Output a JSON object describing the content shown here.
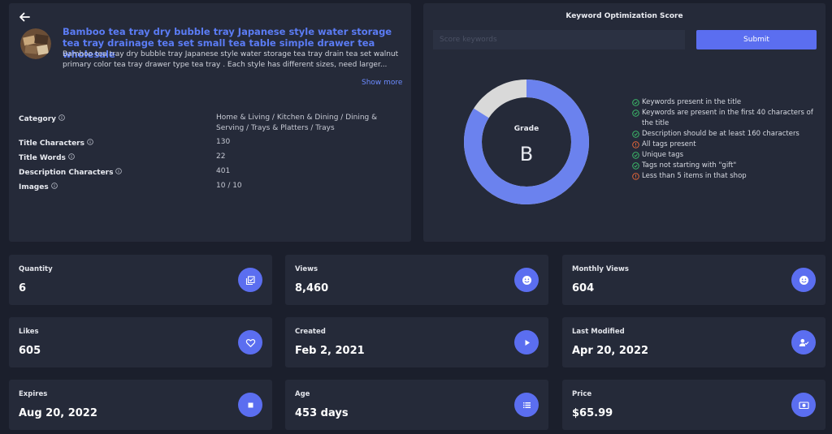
{
  "product": {
    "title": "Bamboo tea tray dry bubble tray Japanese style water storage tea tray drainage tea set small tea table simple drawer tea wholesale",
    "description": "Bamboo tea tray dry bubble tray Japanese style water storage tea tray drain tea set walnut primary color tea tray drawer type tea tray . Each style has different sizes, need larger...",
    "show_more": "Show more",
    "meta": [
      {
        "label": "Category",
        "value": "Home & Living / Kitchen & Dining / Dining & Serving / Trays & Platters / Trays"
      },
      {
        "label": "Title Characters",
        "value": "130"
      },
      {
        "label": "Title Words",
        "value": "22"
      },
      {
        "label": "Description Characters",
        "value": "401"
      },
      {
        "label": "Images",
        "value": "10 / 10"
      }
    ]
  },
  "keyword": {
    "title": "Keyword Optimization Score",
    "placeholder": "Score keywords",
    "submit": "Submit",
    "grade_label": "Grade",
    "grade": "B",
    "score_fraction": 0.84,
    "checks": [
      {
        "text": "Keywords present in the title",
        "status": "pass"
      },
      {
        "text": "Keywords are present in the first 40 characters of the title",
        "status": "pass"
      },
      {
        "text": "Description should be at least 160 characters",
        "status": "pass"
      },
      {
        "text": "All tags present",
        "status": "fail"
      },
      {
        "text": "Unique tags",
        "status": "pass"
      },
      {
        "text": "Tags not starting with \"gift\"",
        "status": "pass"
      },
      {
        "text": "Less than 5 items in that shop",
        "status": "fail"
      }
    ]
  },
  "stats": [
    {
      "label": "Quantity",
      "value": "6",
      "icon": "library-add-check-icon"
    },
    {
      "label": "Views",
      "value": "8,460",
      "icon": "smiley-icon"
    },
    {
      "label": "Monthly Views",
      "value": "604",
      "icon": "smiley-icon"
    },
    {
      "label": "Likes",
      "value": "605",
      "icon": "heart-icon"
    },
    {
      "label": "Created",
      "value": "Feb 2, 2021",
      "icon": "play-icon"
    },
    {
      "label": "Last Modified",
      "value": "Apr 20, 2022",
      "icon": "user-check-icon"
    },
    {
      "label": "Expires",
      "value": "Aug 20, 2022",
      "icon": "stop-icon"
    },
    {
      "label": "Age",
      "value": "453 days",
      "icon": "list-icon"
    },
    {
      "label": "Price",
      "value": "$65.99",
      "icon": "money-icon"
    }
  ],
  "colors": {
    "accent": "#5b6ef0",
    "donut_fill": "#6b82ee",
    "donut_rest": "#d9d9d9",
    "pass": "#3ec46d",
    "fail": "#f06a3a"
  }
}
